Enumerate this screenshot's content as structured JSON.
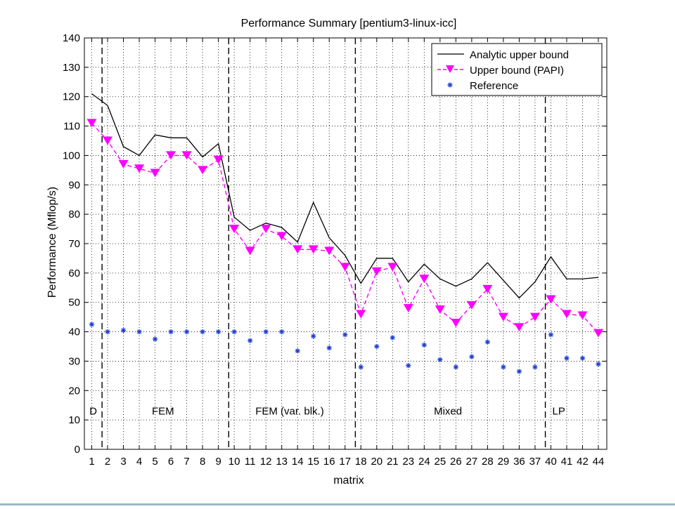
{
  "chart_data": {
    "type": "line",
    "title": "Performance Summary  [pentium3-linux-icc]",
    "xlabel": "matrix",
    "ylabel": "Performance (Mflop/s)",
    "ylim": [
      0,
      140
    ],
    "yticks": [
      0,
      10,
      20,
      30,
      40,
      50,
      60,
      70,
      80,
      90,
      100,
      110,
      120,
      130,
      140
    ],
    "grid": true,
    "legend_position": "top-right",
    "categories": [
      "1",
      "2",
      "3",
      "4",
      "5",
      "6",
      "7",
      "8",
      "9",
      "10",
      "11",
      "12",
      "13",
      "14",
      "15",
      "16",
      "17",
      "18",
      "20",
      "21",
      "23",
      "24",
      "25",
      "26",
      "27",
      "28",
      "29",
      "36",
      "37",
      "40",
      "41",
      "42",
      "44"
    ],
    "series": [
      {
        "name": "Analytic upper bound",
        "style": "solid-line",
        "color": "#000000",
        "values": [
          121,
          117,
          103,
          100,
          107,
          106,
          106,
          99.5,
          104,
          79,
          74.5,
          77,
          75.5,
          70.5,
          84,
          72,
          66,
          56.5,
          65,
          65,
          57,
          63,
          58,
          55.5,
          58,
          63.5,
          57.5,
          51.5,
          57,
          65.5,
          58,
          58,
          58.5
        ]
      },
      {
        "name": "Upper bound (PAPI)",
        "style": "dashed-line-triangle",
        "color": "#ff00ff",
        "values": [
          111,
          105,
          97,
          95.5,
          94,
          100,
          100,
          95,
          98.5,
          75,
          67.5,
          75,
          72.5,
          68,
          68,
          67.5,
          62,
          46,
          60.5,
          62,
          48,
          58,
          47.5,
          43,
          49,
          54.5,
          45,
          41.5,
          45,
          51,
          46,
          45.5,
          39.5
        ]
      },
      {
        "name": "Reference",
        "style": "star-marker",
        "color": "#1f3fd6",
        "values": [
          42.5,
          40,
          40.5,
          40,
          37.5,
          40,
          40,
          40,
          40,
          40,
          37,
          40,
          40,
          33.5,
          38.5,
          34.5,
          39,
          28,
          35,
          38,
          28.5,
          35.5,
          30.5,
          28,
          31.5,
          36.5,
          28,
          26.5,
          28,
          39,
          31,
          31,
          29
        ]
      }
    ],
    "groups": [
      {
        "label": "D",
        "label_index": 0,
        "divider_after_index": 0
      },
      {
        "label": "FEM",
        "label_index": 4.5,
        "divider_after_index": 8
      },
      {
        "label": "FEM (var. blk.)",
        "label_index": 12.5,
        "divider_after_index": 16
      },
      {
        "label": "Mixed",
        "label_index": 22.5,
        "divider_after_index": 28
      },
      {
        "label": "LP",
        "label_index": 29.5,
        "divider_after_index": null
      }
    ]
  }
}
